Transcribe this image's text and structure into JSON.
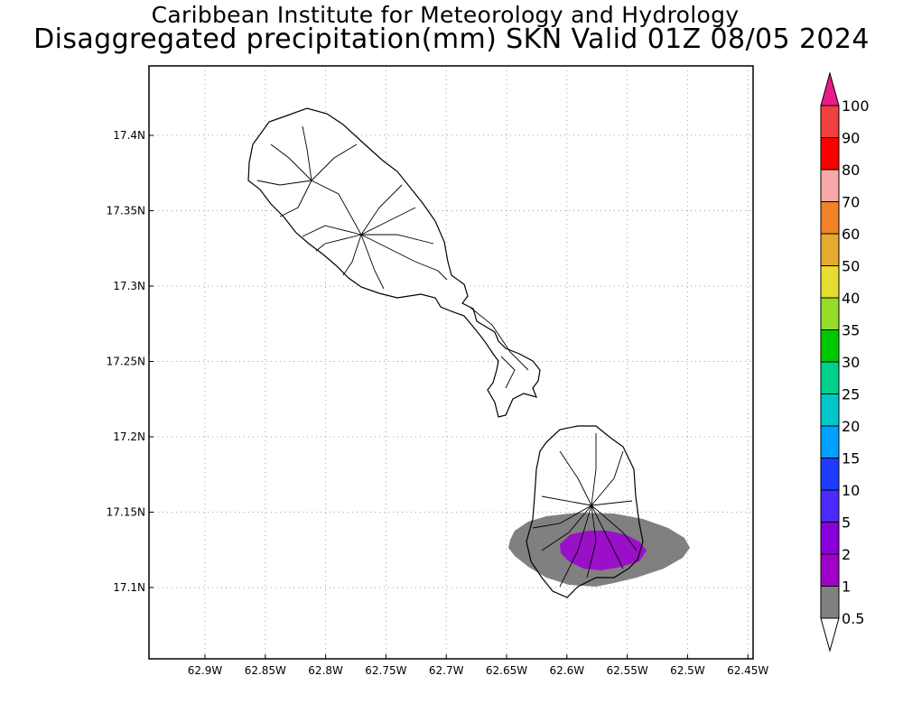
{
  "title": {
    "line1": "Caribbean Institute for Meteorology and Hydrology",
    "line2": "Disaggregated precipitation(mm) SKN Valid 01Z 08/05 2024"
  },
  "map": {
    "lat_ticks": [
      "17.4N",
      "17.35N",
      "17.3N",
      "17.25N",
      "17.2N",
      "17.15N",
      "17.1N"
    ],
    "lon_ticks": [
      "62.9W",
      "62.85W",
      "62.8W",
      "62.75W",
      "62.7W",
      "62.65W",
      "62.6W",
      "62.55W",
      "62.5W",
      "62.45W"
    ],
    "grid": "dotted",
    "land_fill": "#ffffff",
    "outline_color": "#000000"
  },
  "precip_shading": [
    {
      "range": "0.5-1",
      "color": "#808080"
    },
    {
      "range": "2-5",
      "color": "#9a10c8"
    }
  ],
  "colorbar": {
    "labels": [
      "100",
      "90",
      "80",
      "70",
      "60",
      "50",
      "40",
      "35",
      "30",
      "25",
      "20",
      "15",
      "10",
      "5",
      "2",
      "1",
      "0.5"
    ],
    "colors": [
      "#e81a8c",
      "#f04040",
      "#fa0000",
      "#f8a8a8",
      "#f08228",
      "#e6aa2e",
      "#e6dc32",
      "#96dc28",
      "#00c800",
      "#00d08c",
      "#00c8c8",
      "#00a0ff",
      "#1e3cff",
      "#4a2aff",
      "#8a00dc",
      "#a000c8",
      "#808080"
    ]
  }
}
